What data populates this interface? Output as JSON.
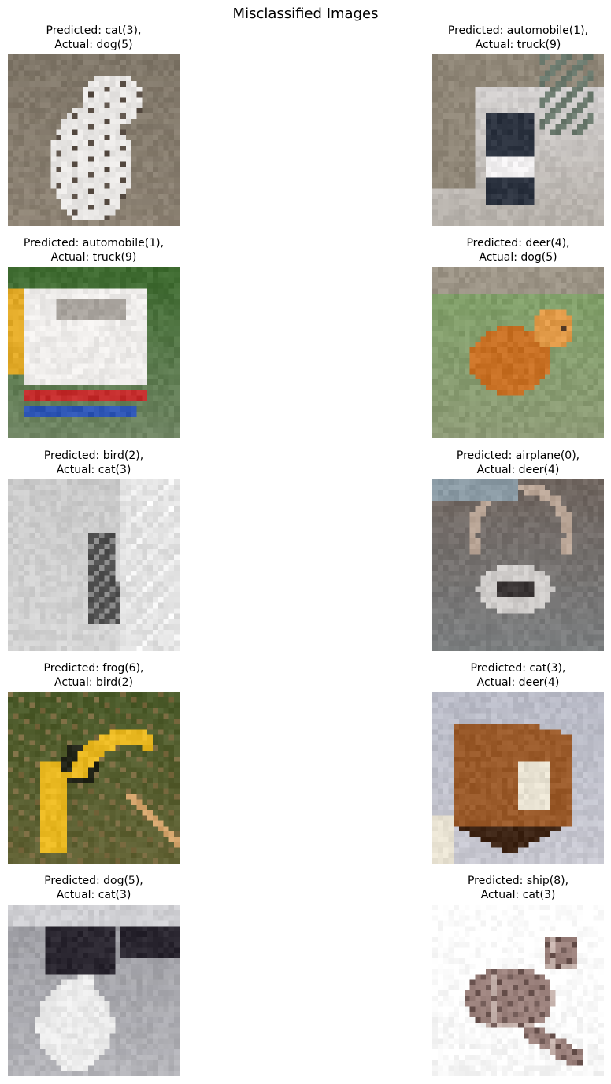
{
  "figure_title": "Misclassified Images",
  "panels": [
    {
      "predicted": "Predicted: cat(3),",
      "actual": "Actual: dog(5)",
      "scene": "dalmatian",
      "palette": {
        "bg": "#7f7668",
        "bg2": "#9a8e7f",
        "subject": "#e8e6e4",
        "accent": "#5a4f46",
        "detail": "#c44d4d"
      }
    },
    {
      "predicted": "Predicted: automobile(1),",
      "actual": "Actual: truck(9)",
      "scene": "forklift",
      "palette": {
        "bg": "#d9d7d8",
        "bg2": "#8f8677",
        "subject": "#2c3340",
        "accent": "#6b7a6e",
        "detail": "#f1eff0"
      }
    },
    {
      "predicted": "Predicted: automobile(1),",
      "actual": "Actual: truck(9)",
      "scene": "bus",
      "palette": {
        "bg": "#3d6a2f",
        "bg2": "#a8a39d",
        "subject": "#eeecea",
        "accent": "#c42c2c",
        "detail": "#2d55b5"
      }
    },
    {
      "predicted": "Predicted: deer(4),",
      "actual": "Actual: dog(5)",
      "scene": "brown-dog",
      "palette": {
        "bg": "#7ea066",
        "bg2": "#9c9486",
        "subject": "#c87024",
        "accent": "#e19a48",
        "detail": "#4b3220"
      }
    },
    {
      "predicted": "Predicted: bird(2),",
      "actual": "Actual: cat(3)",
      "scene": "gray-cat",
      "palette": {
        "bg": "#c9c9c9",
        "bg2": "#e0e0e0",
        "subject": "#4d4d4d",
        "accent": "#f4f4f4",
        "detail": "#8a8a8a"
      }
    },
    {
      "predicted": "Predicted: airplane(0),",
      "actual": "Actual: deer(4)",
      "scene": "deer",
      "palette": {
        "bg": "#6f655f",
        "bg2": "#8a9aa4",
        "subject": "#cfccca",
        "accent": "#3b3636",
        "detail": "#b9a596"
      }
    },
    {
      "predicted": "Predicted: frog(6),",
      "actual": "Actual: bird(2)",
      "scene": "hornbill",
      "palette": {
        "bg": "#4a5a2a",
        "bg2": "#7a6a40",
        "subject": "#e9b821",
        "accent": "#222418",
        "detail": "#d4a46c"
      }
    },
    {
      "predicted": "Predicted: cat(3),",
      "actual": "Actual: deer(4)",
      "scene": "fox-deer",
      "palette": {
        "bg": "#b8bac6",
        "bg2": "#d9d6dc",
        "subject": "#9a5a2a",
        "accent": "#3d2414",
        "detail": "#e8e2d2"
      }
    },
    {
      "predicted": "Predicted: dog(5),",
      "actual": "Actual: cat(3)",
      "scene": "bw-cat",
      "palette": {
        "bg": "#9a9aa0",
        "bg2": "#cfcfd3",
        "subject": "#eaeaea",
        "accent": "#2a2630",
        "detail": "#6e6a70"
      }
    },
    {
      "predicted": "Predicted: ship(8),",
      "actual": "Actual: cat(3)",
      "scene": "falling-cat",
      "palette": {
        "bg": "#ffffff",
        "bg2": "#eeeeee",
        "subject": "#9b817c",
        "accent": "#6b5450",
        "detail": "#c7b4ae"
      }
    }
  ]
}
